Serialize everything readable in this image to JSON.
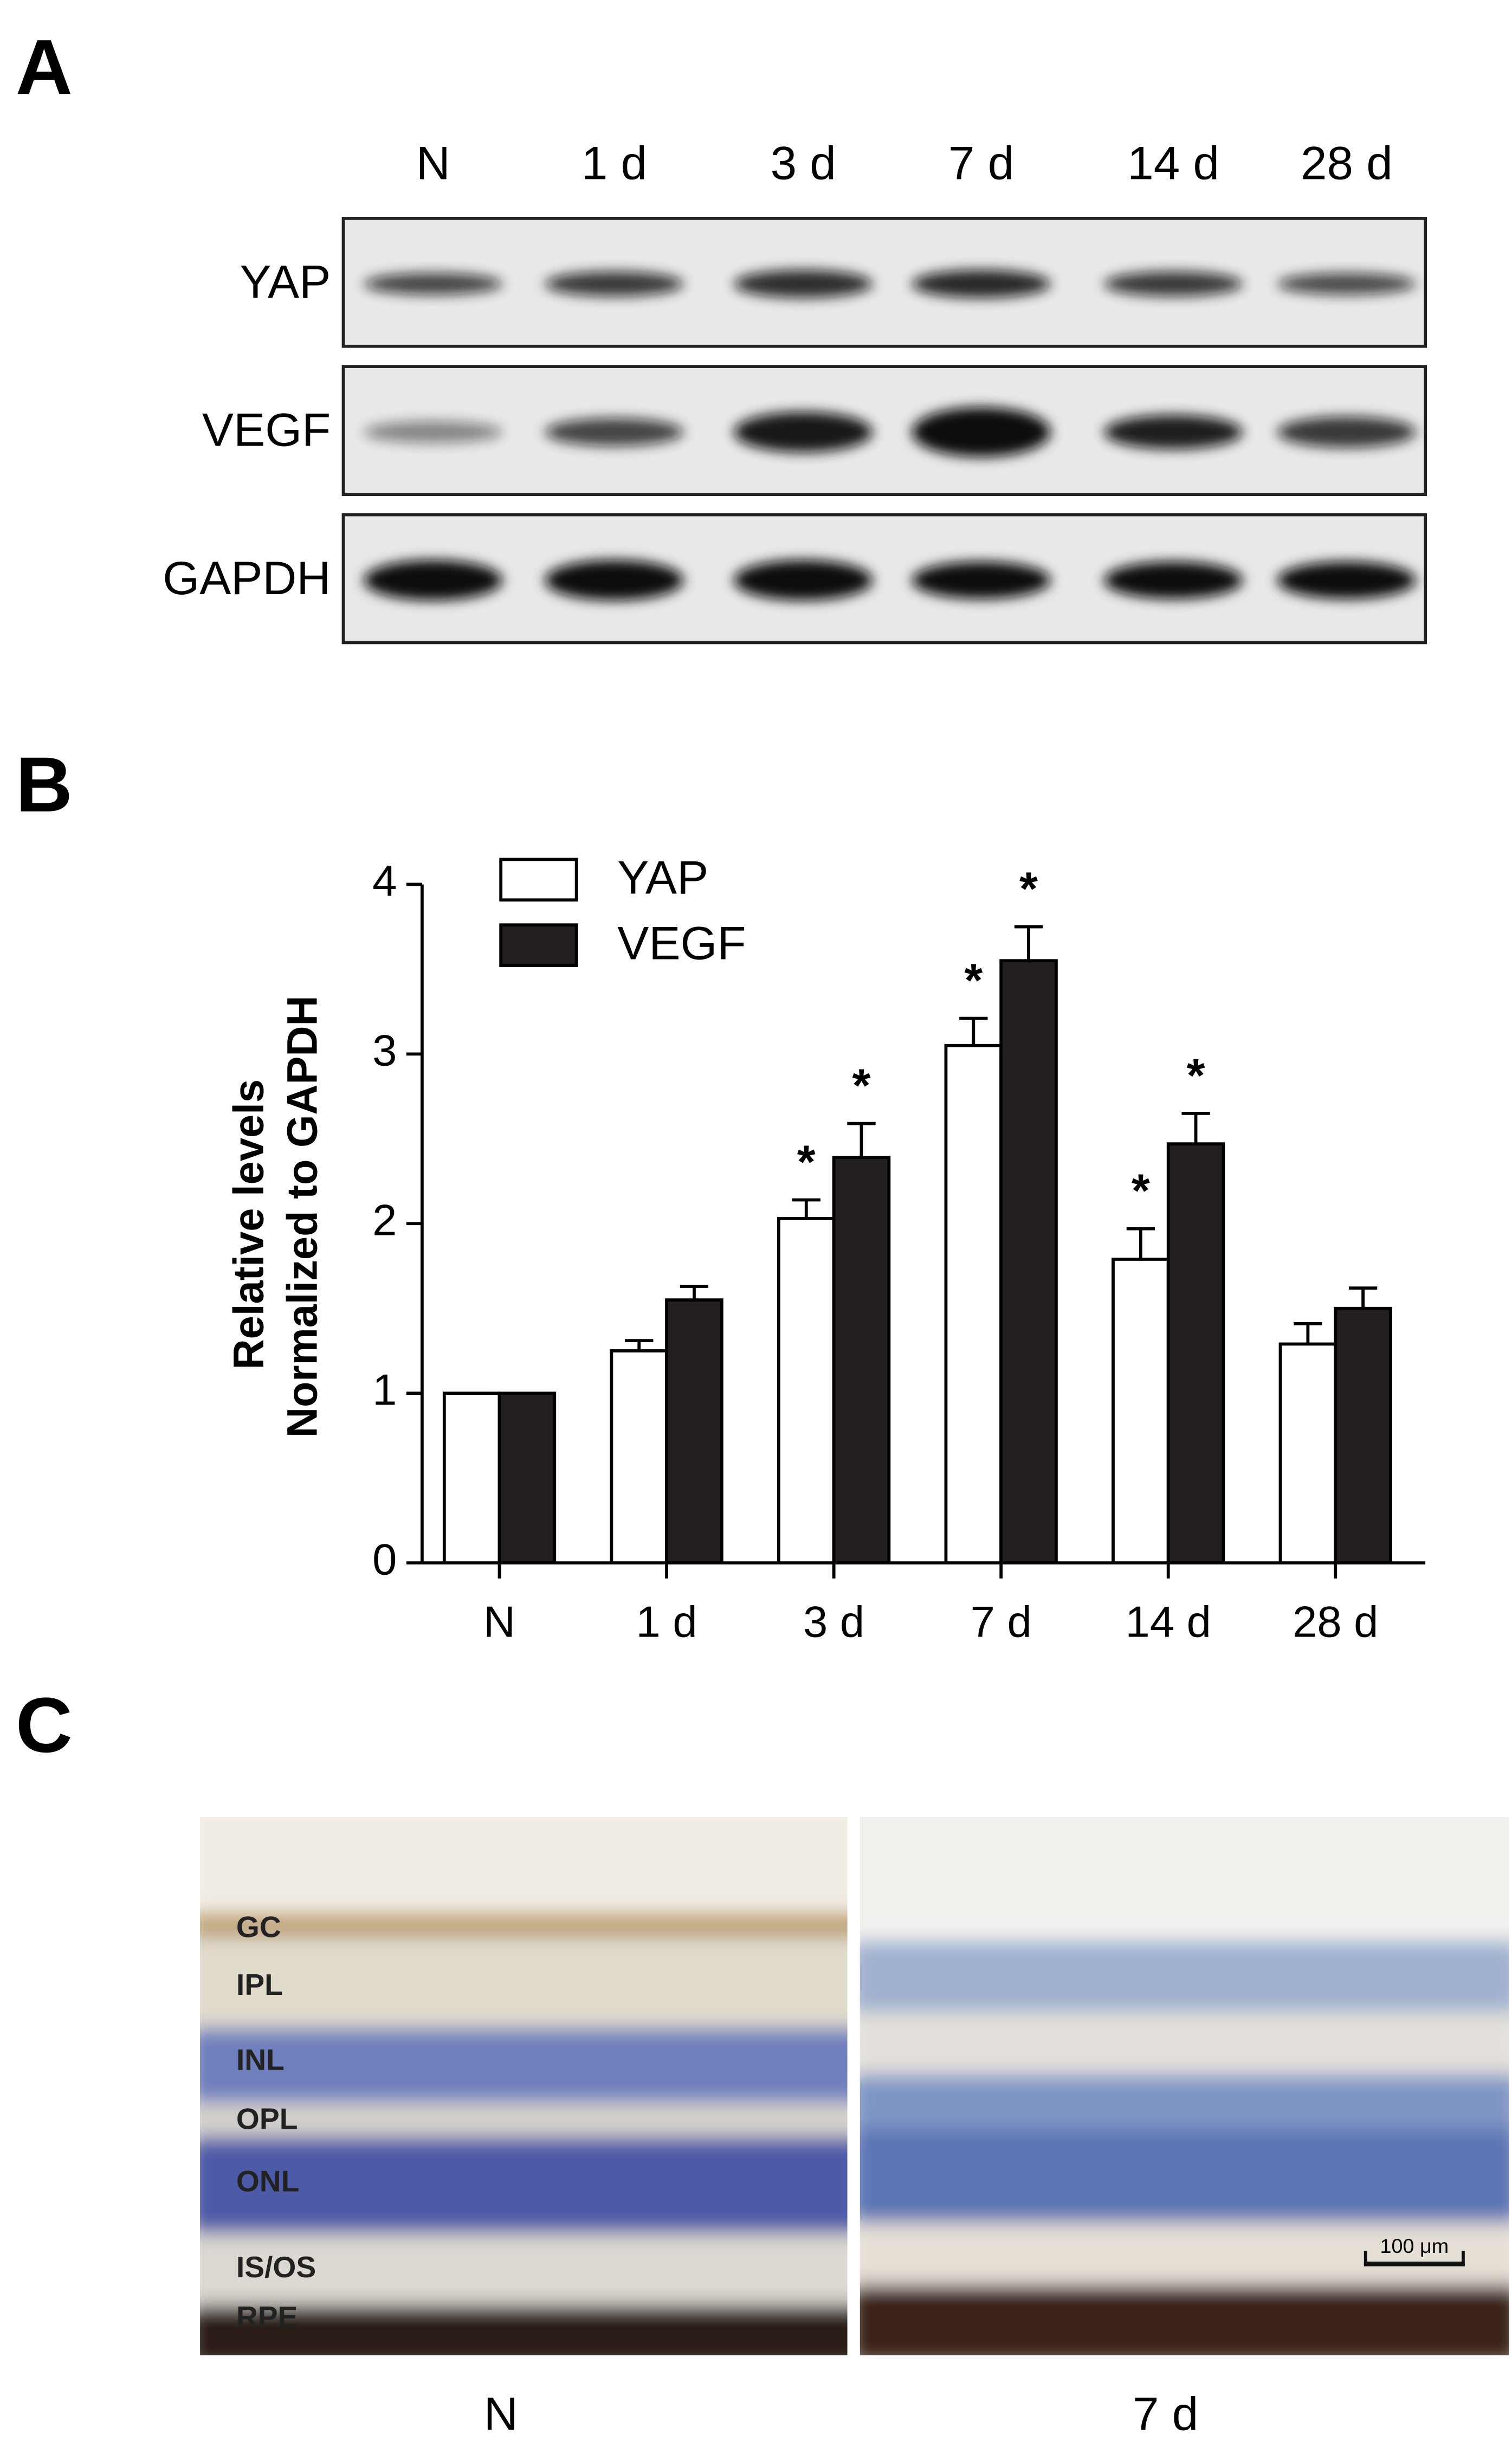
{
  "panel_labels": [
    "A",
    "B",
    "C"
  ],
  "blot": {
    "lanes": [
      "N",
      "1 d",
      "3 d",
      "7 d",
      "14 d",
      "28 d"
    ],
    "rows": [
      "YAP",
      "VEGF",
      "GAPDH"
    ]
  },
  "chart_data": {
    "type": "bar",
    "ylabel": [
      "Relative levels",
      "Normalized to GAPDH"
    ],
    "categories": [
      "N",
      "1 d",
      "3 d",
      "7 d",
      "14 d",
      "28 d"
    ],
    "series": [
      {
        "name": "YAP",
        "color": "#ffffff",
        "values": [
          1.0,
          1.25,
          2.03,
          3.05,
          1.79,
          1.29
        ],
        "errors": [
          0,
          0.06,
          0.11,
          0.16,
          0.18,
          0.12
        ],
        "significance": [
          null,
          null,
          "*",
          "*",
          "*",
          null
        ]
      },
      {
        "name": "VEGF",
        "color": "#231f20",
        "values": [
          1.0,
          1.55,
          2.39,
          3.55,
          2.47,
          1.5
        ],
        "errors": [
          0,
          0.08,
          0.2,
          0.2,
          0.18,
          0.12
        ],
        "significance": [
          null,
          null,
          "*",
          "*",
          "*",
          null
        ]
      }
    ],
    "ylim": [
      0,
      4
    ],
    "yticks": [
      0,
      1,
      2,
      3,
      4
    ],
    "grid": false,
    "legend": "top-left"
  },
  "histology": {
    "layers": [
      "GC",
      "IPL",
      "INL",
      "OPL",
      "ONL",
      "IS/OS",
      "RPE"
    ],
    "scale_bar": "100 μm",
    "captions": [
      "N",
      "7 d"
    ]
  }
}
